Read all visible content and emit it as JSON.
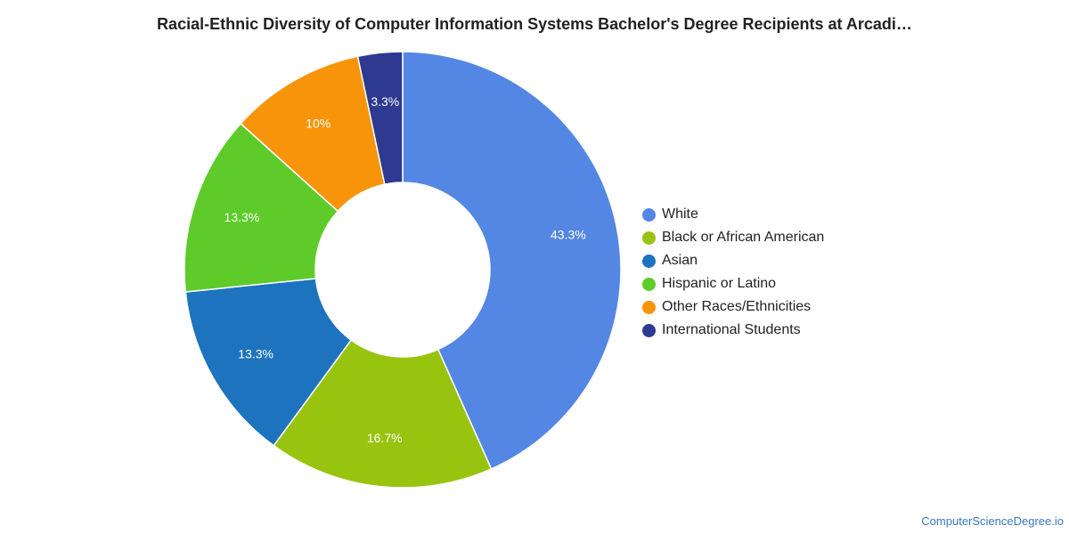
{
  "chart_data": {
    "type": "pie",
    "donut": true,
    "title": "Racial-Ethnic Diversity of Computer Information Systems Bachelor's Degree Recipients at Arcadi…",
    "legend_position": "right",
    "slices": [
      {
        "label": "White",
        "value": 43.3,
        "display": "43.3%",
        "color": "#5486e3"
      },
      {
        "label": "Black or African American",
        "value": 16.7,
        "display": "16.7%",
        "color": "#98c40f"
      },
      {
        "label": "Asian",
        "value": 13.3,
        "display": "13.3%",
        "color": "#1e73be"
      },
      {
        "label": "Hispanic or Latino",
        "value": 13.3,
        "display": "13.3%",
        "color": "#5ecb2a"
      },
      {
        "label": "Other Races/Ethnicities",
        "value": 10,
        "display": "10%",
        "color": "#f7940a"
      },
      {
        "label": "International Students",
        "value": 3.3,
        "display": "3.3%",
        "color": "#2d3a8f"
      }
    ]
  },
  "footer": {
    "source": "ComputerScienceDegree.io"
  }
}
